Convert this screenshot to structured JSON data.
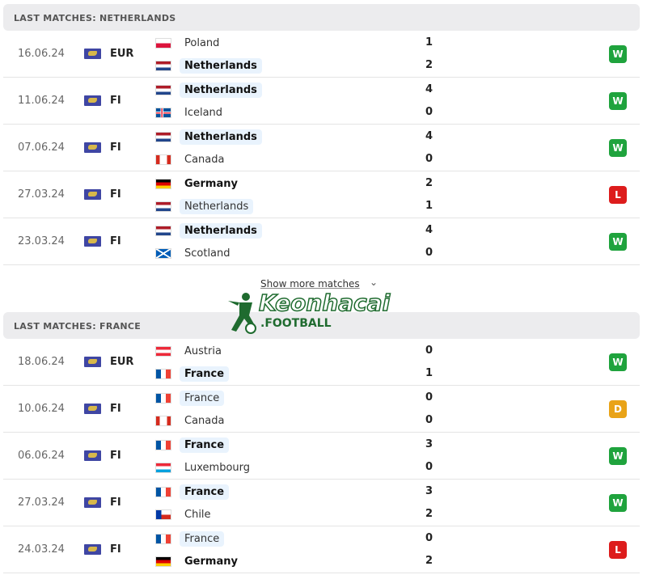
{
  "colors": {
    "win": "#1fa33d",
    "loss": "#dd1c1c",
    "draw": "#e9a317",
    "highlight": "#e9f3fd"
  },
  "sections": [
    {
      "title": "LAST MATCHES: NETHERLANDS",
      "matches": [
        {
          "date": "16.06.24",
          "comp": "EUR",
          "home": "Poland",
          "away": "Netherlands",
          "hs": "1",
          "as": "2",
          "result": "W",
          "hf": "poland",
          "af": "netherlands",
          "hb": false,
          "ab": true,
          "hh": false,
          "ah": true
        },
        {
          "date": "11.06.24",
          "comp": "FI",
          "home": "Netherlands",
          "away": "Iceland",
          "hs": "4",
          "as": "0",
          "result": "W",
          "hf": "netherlands",
          "af": "iceland",
          "hb": true,
          "ab": false,
          "hh": true,
          "ah": false
        },
        {
          "date": "07.06.24",
          "comp": "FI",
          "home": "Netherlands",
          "away": "Canada",
          "hs": "4",
          "as": "0",
          "result": "W",
          "hf": "netherlands",
          "af": "canada",
          "hb": true,
          "ab": false,
          "hh": true,
          "ah": false
        },
        {
          "date": "27.03.24",
          "comp": "FI",
          "home": "Germany",
          "away": "Netherlands",
          "hs": "2",
          "as": "1",
          "result": "L",
          "hf": "germany",
          "af": "netherlands",
          "hb": true,
          "ab": false,
          "hh": false,
          "ah": true
        },
        {
          "date": "23.03.24",
          "comp": "FI",
          "home": "Netherlands",
          "away": "Scotland",
          "hs": "4",
          "as": "0",
          "result": "W",
          "hf": "netherlands",
          "af": "scotland",
          "hb": true,
          "ab": false,
          "hh": true,
          "ah": false
        }
      ]
    },
    {
      "title": "LAST MATCHES: FRANCE",
      "matches": [
        {
          "date": "18.06.24",
          "comp": "EUR",
          "home": "Austria",
          "away": "France",
          "hs": "0",
          "as": "1",
          "result": "W",
          "hf": "austria",
          "af": "france",
          "hb": false,
          "ab": true,
          "hh": false,
          "ah": true
        },
        {
          "date": "10.06.24",
          "comp": "FI",
          "home": "France",
          "away": "Canada",
          "hs": "0",
          "as": "0",
          "result": "D",
          "hf": "france",
          "af": "canada",
          "hb": false,
          "ab": false,
          "hh": true,
          "ah": false
        },
        {
          "date": "06.06.24",
          "comp": "FI",
          "home": "France",
          "away": "Luxembourg",
          "hs": "3",
          "as": "0",
          "result": "W",
          "hf": "france",
          "af": "luxembourg",
          "hb": true,
          "ab": false,
          "hh": true,
          "ah": false
        },
        {
          "date": "27.03.24",
          "comp": "FI",
          "home": "France",
          "away": "Chile",
          "hs": "3",
          "as": "2",
          "result": "W",
          "hf": "france",
          "af": "chile",
          "hb": true,
          "ab": false,
          "hh": true,
          "ah": false
        },
        {
          "date": "24.03.24",
          "comp": "FI",
          "home": "France",
          "away": "Germany",
          "hs": "0",
          "as": "2",
          "result": "L",
          "hf": "france",
          "af": "germany",
          "hb": false,
          "ab": true,
          "hh": true,
          "ah": false
        }
      ]
    }
  ],
  "show_more": "Show more matches",
  "watermark": {
    "name": "Keonhacai",
    "suffix": ".FOOTBALL"
  }
}
